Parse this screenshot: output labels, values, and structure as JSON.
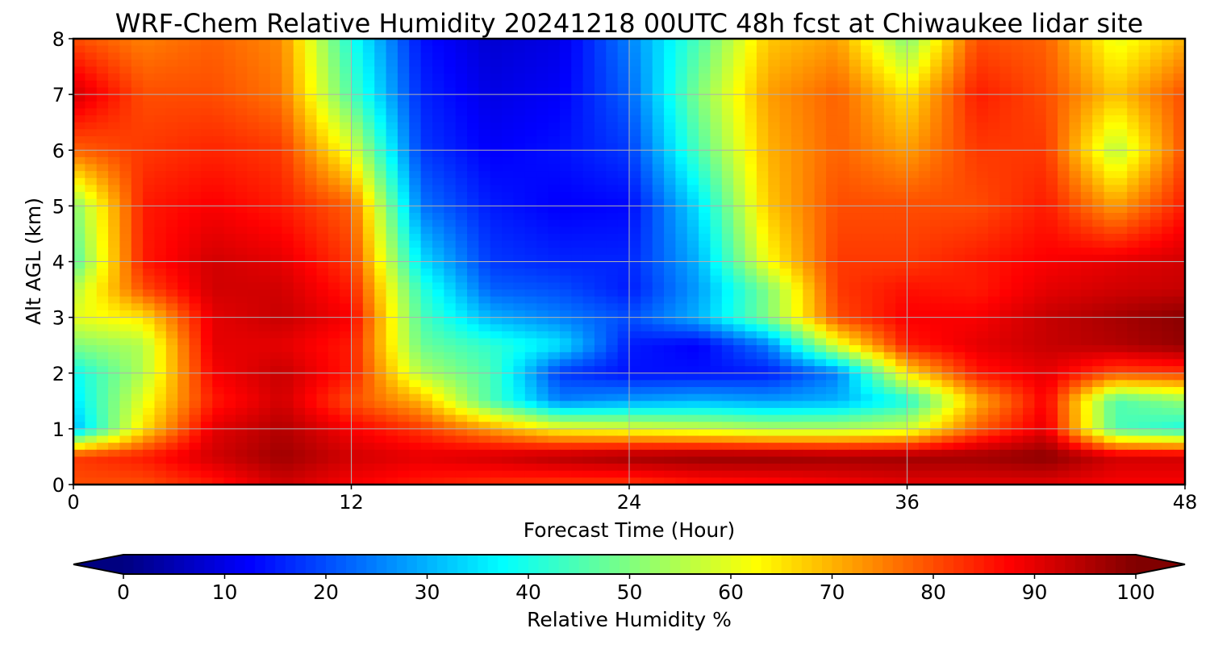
{
  "chart_data": {
    "type": "heatmap",
    "title": "WRF-Chem Relative Humidity 20241218 00UTC 48h fcst at Chiwaukee lidar site",
    "xlabel": "Forecast Time (Hour)",
    "ylabel": "Alt AGL (km)",
    "xlim": [
      0,
      48
    ],
    "ylim": [
      0,
      8
    ],
    "x_ticks": [
      "0",
      "12",
      "24",
      "36",
      "48"
    ],
    "y_ticks": [
      "0",
      "1",
      "2",
      "3",
      "4",
      "5",
      "6",
      "7",
      "8"
    ],
    "grid": true,
    "colormap": "jet",
    "colorbar": {
      "label": "Relative Humidity %",
      "orientation": "horizontal",
      "placement": "bottom",
      "range": [
        0,
        100
      ],
      "ticks": [
        "0",
        "10",
        "20",
        "30",
        "40",
        "50",
        "60",
        "70",
        "80",
        "90",
        "100"
      ],
      "extend": "both"
    },
    "x": [
      0,
      3,
      6,
      9,
      12,
      15,
      18,
      21,
      24,
      27,
      30,
      33,
      36,
      39,
      42,
      45,
      48
    ],
    "y": [
      0,
      0.5,
      1,
      1.5,
      2,
      2.5,
      3,
      3.5,
      4,
      5,
      6,
      7,
      8
    ],
    "z": [
      [
        80,
        80,
        85,
        92,
        88,
        85,
        83,
        82,
        82,
        85,
        86,
        88,
        90,
        90,
        90,
        88,
        88
      ],
      [
        82,
        85,
        92,
        97,
        92,
        90,
        92,
        95,
        97,
        98,
        98,
        97,
        97,
        97,
        99,
        92,
        92
      ],
      [
        30,
        65,
        90,
        95,
        88,
        82,
        72,
        62,
        60,
        58,
        55,
        55,
        58,
        78,
        90,
        45,
        40
      ],
      [
        35,
        60,
        85,
        92,
        80,
        70,
        45,
        25,
        28,
        30,
        28,
        30,
        40,
        70,
        88,
        45,
        52
      ],
      [
        38,
        55,
        88,
        93,
        85,
        55,
        45,
        18,
        14,
        14,
        15,
        25,
        65,
        85,
        90,
        80,
        82
      ],
      [
        50,
        55,
        90,
        90,
        85,
        48,
        42,
        35,
        15,
        12,
        25,
        60,
        85,
        90,
        93,
        95,
        98
      ],
      [
        60,
        65,
        90,
        93,
        88,
        45,
        30,
        25,
        20,
        30,
        50,
        80,
        88,
        88,
        93,
        96,
        99
      ],
      [
        55,
        80,
        92,
        92,
        85,
        42,
        22,
        20,
        15,
        28,
        50,
        82,
        86,
        85,
        90,
        92,
        93
      ],
      [
        45,
        85,
        92,
        90,
        82,
        35,
        18,
        16,
        16,
        30,
        62,
        82,
        82,
        85,
        88,
        90,
        92
      ],
      [
        50,
        85,
        88,
        85,
        78,
        24,
        15,
        12,
        13,
        35,
        68,
        80,
        80,
        80,
        85,
        72,
        85
      ],
      [
        78,
        82,
        84,
        82,
        60,
        18,
        12,
        14,
        18,
        45,
        70,
        78,
        72,
        82,
        82,
        55,
        80
      ],
      [
        92,
        80,
        80,
        76,
        45,
        16,
        10,
        12,
        22,
        50,
        72,
        78,
        65,
        85,
        80,
        68,
        80
      ],
      [
        80,
        75,
        78,
        74,
        40,
        14,
        8,
        10,
        25,
        45,
        68,
        72,
        50,
        80,
        78,
        60,
        70
      ]
    ]
  }
}
